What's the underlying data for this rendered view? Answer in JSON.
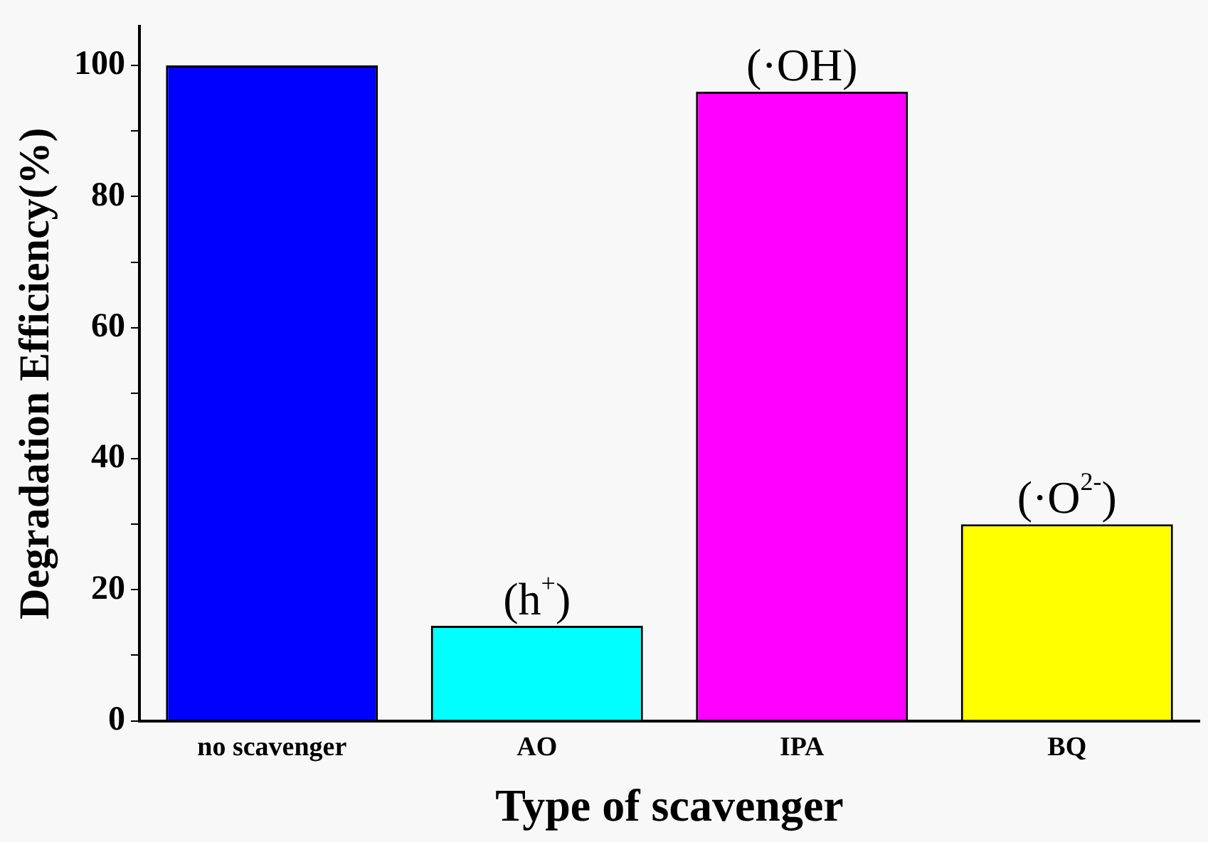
{
  "chart_data": {
    "type": "bar",
    "xlabel": "Type of scavenger",
    "ylabel": "Degradation Efficiency(%)",
    "categories": [
      "no scavenger",
      "AO",
      "IPA",
      "BQ"
    ],
    "values": [
      100,
      14.5,
      96,
      30
    ],
    "colors": [
      "#0000ff",
      "#00ffff",
      "#ff00ff",
      "#ffff00"
    ],
    "ylim": [
      0,
      106
    ],
    "yticks": [
      0,
      {
        "value": 10,
        "label": null
      },
      20,
      {
        "value": 30,
        "label": null
      },
      40,
      {
        "value": 50,
        "label": null
      },
      60,
      {
        "value": 70,
        "label": null
      },
      80,
      {
        "value": 90,
        "label": null
      },
      100
    ],
    "grid": false,
    "legend": false,
    "annotations": [
      {
        "text": "(h$^{+}$)",
        "x": "AO",
        "y": 14.5
      },
      {
        "text": "(·OH)",
        "x": "IPA",
        "y": 96
      },
      {
        "text": "(·O$^{2-}$)",
        "x": "BQ",
        "y": 30
      }
    ]
  }
}
